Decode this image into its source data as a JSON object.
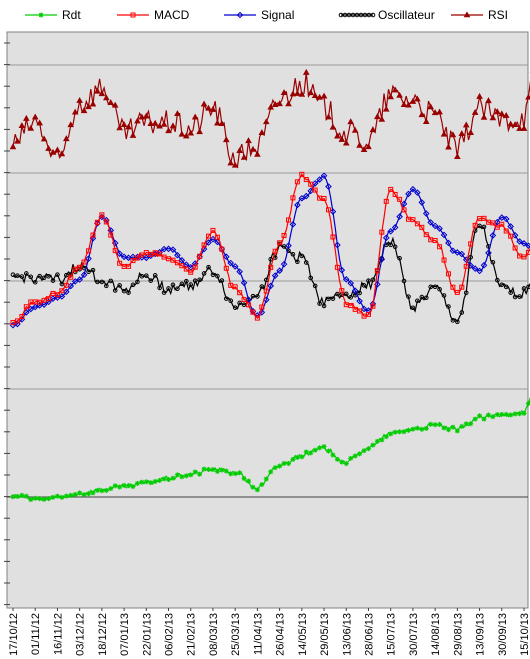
{
  "chart_data": {
    "type": "line",
    "title": "",
    "xlabel": "",
    "ylabel": "",
    "grid": true,
    "legend_position": "top",
    "x_tick_labels": [
      "17/10/12",
      "01/11/12",
      "16/11/12",
      "03/12/12",
      "18/12/12",
      "07/01/13",
      "22/01/13",
      "06/02/13",
      "21/02/13",
      "08/03/13",
      "25/03/13",
      "11/04/13",
      "26/04/13",
      "14/05/13",
      "29/05/13",
      "13/06/13",
      "28/06/13",
      "15/07/13",
      "30/07/13",
      "14/08/13",
      "29/08/13",
      "13/09/13",
      "30/09/13",
      "15/10/13"
    ],
    "series": [
      {
        "name": "Rdt",
        "color": "#00cc00",
        "marker": "asterisk",
        "points": [
          [
            0,
            0.2
          ],
          [
            1,
            -0.5
          ],
          [
            2,
            -0.3
          ],
          [
            3,
            0.8
          ],
          [
            4,
            1.7
          ],
          [
            5,
            2.3
          ],
          [
            6,
            3.2
          ],
          [
            7,
            4.3
          ],
          [
            8,
            5.2
          ],
          [
            9,
            6.3
          ],
          [
            10,
            5.6
          ],
          [
            11,
            2.0
          ],
          [
            12,
            7.2
          ],
          [
            13,
            9.6
          ],
          [
            14,
            11.0
          ],
          [
            15,
            8.0
          ],
          [
            16,
            11.2
          ],
          [
            17,
            14.4
          ],
          [
            18,
            15.5
          ],
          [
            19,
            16.3
          ],
          [
            20,
            15.3
          ],
          [
            21,
            18.0
          ],
          [
            22,
            18.5
          ],
          [
            23,
            19.5
          ],
          [
            23.5,
            24.0
          ]
        ]
      },
      {
        "name": "MACD",
        "color": "#ff0000",
        "marker": "square",
        "points": [
          [
            0,
            -0.9
          ],
          [
            1,
            -0.5
          ],
          [
            2,
            -0.3
          ],
          [
            3,
            0.3
          ],
          [
            4,
            1.4
          ],
          [
            5,
            0.3
          ],
          [
            6,
            0.6
          ],
          [
            7,
            0.5
          ],
          [
            8,
            0.2
          ],
          [
            9,
            1.1
          ],
          [
            10,
            -0.2
          ],
          [
            11,
            -0.8
          ],
          [
            12,
            0.8
          ],
          [
            13,
            2.3
          ],
          [
            14,
            1.8
          ],
          [
            15,
            -0.5
          ],
          [
            16,
            -0.8
          ],
          [
            17,
            2.0
          ],
          [
            18,
            1.3
          ],
          [
            19,
            0.9
          ],
          [
            20,
            -0.3
          ],
          [
            21,
            1.4
          ],
          [
            22,
            1.2
          ],
          [
            23,
            0.5
          ],
          [
            23.5,
            0.9
          ]
        ]
      },
      {
        "name": "Signal",
        "color": "#0000cc",
        "marker": "diamond",
        "points": [
          [
            0,
            -1.0
          ],
          [
            1,
            -0.6
          ],
          [
            2,
            -0.4
          ],
          [
            3,
            0.0
          ],
          [
            4,
            1.4
          ],
          [
            5,
            0.5
          ],
          [
            6,
            0.5
          ],
          [
            7,
            0.7
          ],
          [
            8,
            0.3
          ],
          [
            9,
            0.9
          ],
          [
            10,
            0.3
          ],
          [
            11,
            -0.8
          ],
          [
            12,
            0.2
          ],
          [
            13,
            1.8
          ],
          [
            14,
            2.3
          ],
          [
            15,
            0.0
          ],
          [
            16,
            -0.7
          ],
          [
            17,
            1.1
          ],
          [
            18,
            2.0
          ],
          [
            19,
            1.2
          ],
          [
            20,
            0.6
          ],
          [
            21,
            0.2
          ],
          [
            22,
            1.4
          ],
          [
            23,
            0.8
          ],
          [
            23.5,
            0.7
          ]
        ]
      },
      {
        "name": "Oscillateur",
        "color": "#000000",
        "marker": "circle",
        "points": [
          [
            0,
            0.05
          ],
          [
            1,
            0.05
          ],
          [
            2,
            0.0
          ],
          [
            3,
            0.3
          ],
          [
            4,
            0.0
          ],
          [
            5,
            -0.2
          ],
          [
            6,
            0.1
          ],
          [
            7,
            -0.2
          ],
          [
            8,
            -0.1
          ],
          [
            9,
            0.2
          ],
          [
            10,
            -0.6
          ],
          [
            11,
            -0.3
          ],
          [
            12,
            0.7
          ],
          [
            13,
            0.5
          ],
          [
            14,
            -0.5
          ],
          [
            15,
            -0.3
          ],
          [
            16,
            -0.1
          ],
          [
            17,
            0.9
          ],
          [
            18,
            -0.6
          ],
          [
            19,
            -0.2
          ],
          [
            20,
            -0.9
          ],
          [
            21,
            1.2
          ],
          [
            22,
            -0.2
          ],
          [
            23,
            -0.3
          ],
          [
            23.5,
            0.2
          ]
        ]
      },
      {
        "name": "RSI",
        "color": "#990000",
        "marker": "triangle",
        "points": [
          [
            0,
            45
          ],
          [
            1,
            55
          ],
          [
            2,
            36
          ],
          [
            3,
            64
          ],
          [
            4,
            72
          ],
          [
            5,
            50
          ],
          [
            6,
            55
          ],
          [
            7,
            55
          ],
          [
            8,
            52
          ],
          [
            9,
            62
          ],
          [
            10,
            38
          ],
          [
            11,
            44
          ],
          [
            12,
            66
          ],
          [
            13,
            74
          ],
          [
            14,
            62
          ],
          [
            15,
            50
          ],
          [
            16,
            46
          ],
          [
            17,
            68
          ],
          [
            18,
            66
          ],
          [
            19,
            58
          ],
          [
            20,
            42
          ],
          [
            21,
            62
          ],
          [
            22,
            56
          ],
          [
            23,
            58
          ],
          [
            23.5,
            78
          ]
        ]
      }
    ]
  }
}
